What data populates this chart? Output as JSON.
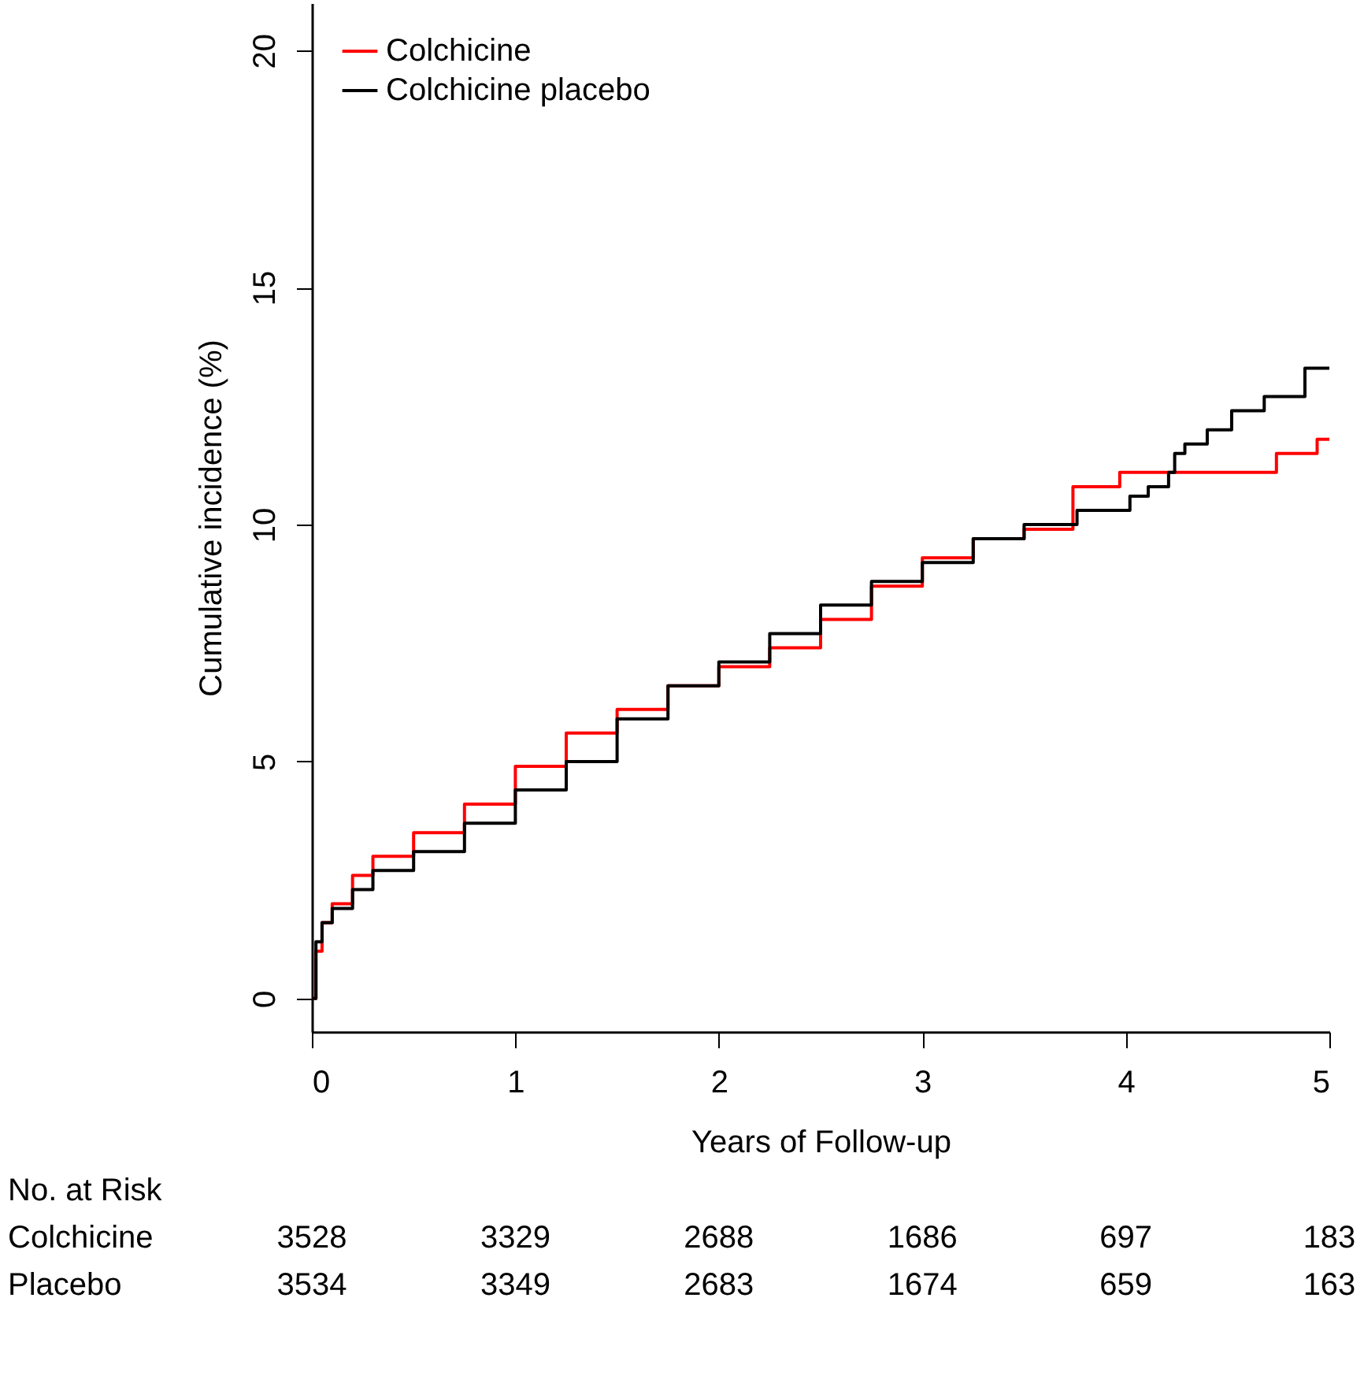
{
  "chart_data": {
    "type": "step",
    "xlabel": "Years of Follow-up",
    "ylabel": "Cumulative incidence (%)",
    "xlim": [
      0,
      5
    ],
    "xticks": [
      0,
      1,
      2,
      3,
      4,
      5
    ],
    "ylim": [
      -0.7,
      21
    ],
    "yticks": [
      0,
      5,
      10,
      15,
      20
    ],
    "legend": "top left",
    "grid": false,
    "series": [
      {
        "name": "Colchicine",
        "color": "#ff0000",
        "x": [
          0,
          0.02,
          0.05,
          0.1,
          0.2,
          0.3,
          0.5,
          0.75,
          1,
          1.25,
          1.5,
          1.75,
          2,
          2.25,
          2.5,
          2.75,
          3,
          3.25,
          3.5,
          3.74,
          3.97,
          4.74,
          4.94,
          5
        ],
        "values": [
          0,
          1.0,
          1.6,
          2.0,
          2.6,
          3.0,
          3.5,
          4.1,
          4.9,
          5.6,
          6.1,
          6.6,
          7.0,
          7.4,
          8.0,
          8.7,
          9.3,
          9.7,
          9.9,
          10.8,
          11.1,
          11.5,
          11.8,
          11.8
        ]
      },
      {
        "name": "Colchicine placebo",
        "color": "#000000",
        "x": [
          0,
          0.02,
          0.05,
          0.1,
          0.2,
          0.3,
          0.5,
          0.75,
          1,
          1.25,
          1.5,
          1.75,
          2,
          2.25,
          2.5,
          2.75,
          3,
          3.25,
          3.5,
          3.76,
          4.02,
          4.11,
          4.21,
          4.24,
          4.29,
          4.4,
          4.52,
          4.68,
          4.88,
          5
        ],
        "values": [
          0,
          1.2,
          1.6,
          1.9,
          2.3,
          2.7,
          3.1,
          3.7,
          4.4,
          5.0,
          5.9,
          6.6,
          7.1,
          7.7,
          8.3,
          8.8,
          9.2,
          9.7,
          10.0,
          10.3,
          10.6,
          10.8,
          11.1,
          11.5,
          11.7,
          12.0,
          12.4,
          12.7,
          13.3,
          13.3
        ]
      }
    ],
    "annotations": [
      "No. at Risk",
      "Colchicine 3528 3329 2688 1686 697 183",
      "Placebo 3534 3349 2683 1674 659 163"
    ]
  }
}
